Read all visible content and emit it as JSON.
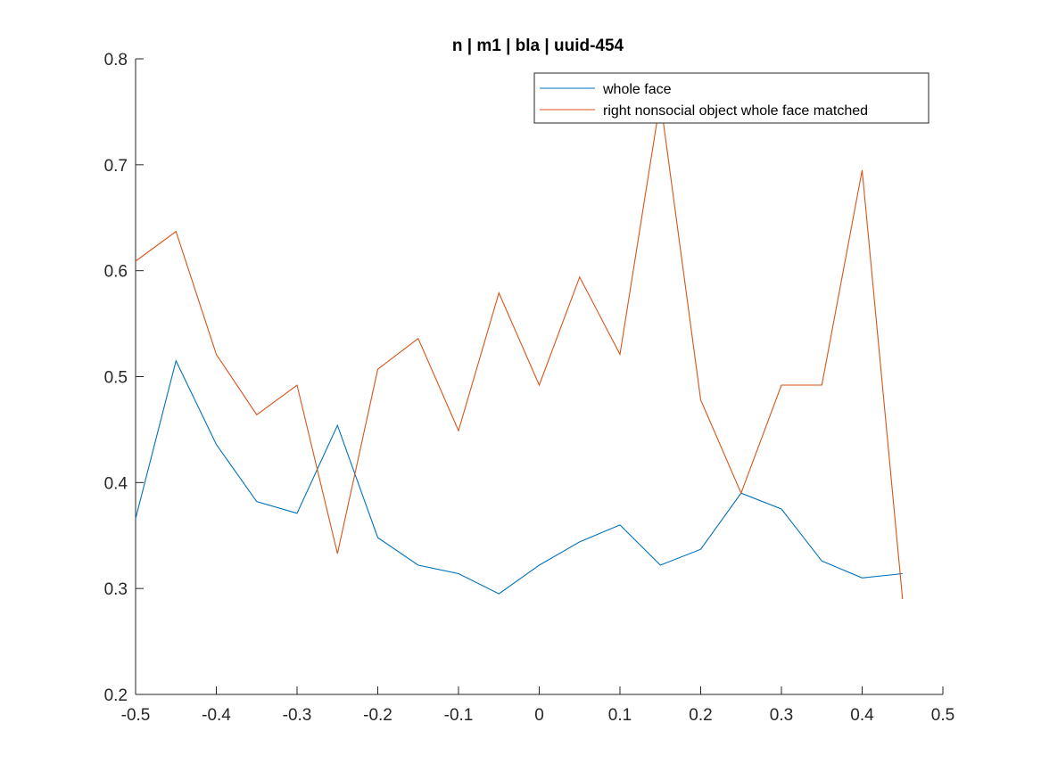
{
  "chart_data": {
    "type": "line",
    "title": "n | m1 | bla | uuid-454",
    "xlabel": "",
    "ylabel": "",
    "xlim": [
      -0.5,
      0.5
    ],
    "ylim": [
      0.2,
      0.8
    ],
    "xticks": [
      -0.5,
      -0.4,
      -0.3,
      -0.2,
      -0.1,
      0,
      0.1,
      0.2,
      0.3,
      0.4,
      0.5
    ],
    "xtick_labels": [
      "-0.5",
      "-0.4",
      "-0.3",
      "-0.2",
      "-0.1",
      "0",
      "0.1",
      "0.2",
      "0.3",
      "0.4",
      "0.5"
    ],
    "yticks": [
      0.2,
      0.3,
      0.4,
      0.5,
      0.6,
      0.7,
      0.8
    ],
    "ytick_labels": [
      "0.2",
      "0.3",
      "0.4",
      "0.5",
      "0.6",
      "0.7",
      "0.8"
    ],
    "grid": false,
    "legend_position": "top-right",
    "x": [
      -0.5,
      -0.45,
      -0.4,
      -0.35,
      -0.3,
      -0.25,
      -0.2,
      -0.15,
      -0.1,
      -0.05,
      0,
      0.05,
      0.1,
      0.15,
      0.2,
      0.25,
      0.3,
      0.35,
      0.4,
      0.45
    ],
    "series": [
      {
        "name": "whole face",
        "color": "#0072BD",
        "values": [
          0.366,
          0.515,
          0.436,
          0.382,
          0.371,
          0.454,
          0.348,
          0.322,
          0.314,
          0.295,
          0.322,
          0.344,
          0.36,
          0.322,
          0.337,
          0.39,
          0.375,
          0.326,
          0.31,
          0.314
        ]
      },
      {
        "name": "right nonsocial object whole face matched",
        "color": "#D95319",
        "values": [
          0.609,
          0.637,
          0.521,
          0.464,
          0.492,
          0.333,
          0.507,
          0.536,
          0.449,
          0.579,
          0.492,
          0.594,
          0.521,
          0.761,
          0.478,
          0.39,
          0.492,
          0.492,
          0.695,
          0.29
        ]
      }
    ]
  }
}
